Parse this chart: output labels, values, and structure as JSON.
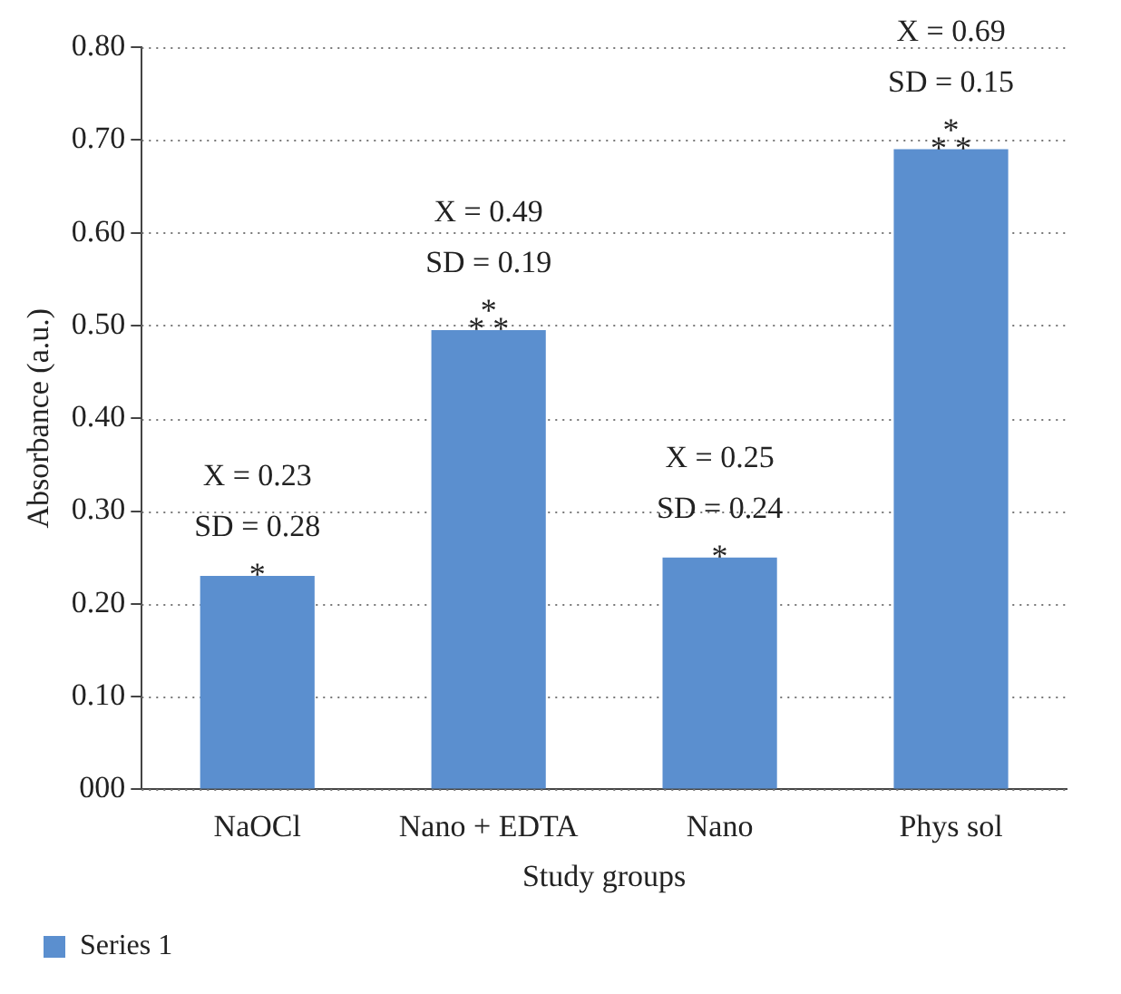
{
  "chart_data": {
    "type": "bar",
    "xlabel": "Study groups",
    "ylabel": "Absorbance (a.u.)",
    "categories": [
      "NaOCl",
      "Nano + EDTA",
      "Nano",
      "Phys sol"
    ],
    "series": [
      {
        "name": "Series 1",
        "color": "#5b8fcf",
        "values": [
          0.23,
          0.495,
          0.25,
          0.69
        ]
      }
    ],
    "ylim": [
      0,
      0.8
    ],
    "yticks": [
      {
        "value": 0,
        "label": "000"
      },
      {
        "value": 0.1,
        "label": "0.10"
      },
      {
        "value": 0.2,
        "label": "0.20"
      },
      {
        "value": 0.3,
        "label": "0.30"
      },
      {
        "value": 0.4,
        "label": "0.40"
      },
      {
        "value": 0.5,
        "label": "0.50"
      },
      {
        "value": 0.6,
        "label": "0.60"
      },
      {
        "value": 0.7,
        "label": "0.70"
      },
      {
        "value": 0.8,
        "label": "0.80"
      }
    ],
    "grid": "y",
    "legend": "bottom left",
    "annotations": [
      {
        "text": "X = 0.23\nSD = 0.28\n*",
        "x": "NaOCl",
        "y": 0.23
      },
      {
        "text": "X = 0.49\nSD = 0.19\n*\n* *",
        "x": "Nano + EDTA",
        "y": 0.495
      },
      {
        "text": "X = 0.25\nSD = 0.24\n*",
        "x": "Nano",
        "y": 0.25
      },
      {
        "text": "X = 0.69\nSD = 0.15\n*\n* *",
        "x": "Phys sol",
        "y": 0.69
      }
    ]
  }
}
